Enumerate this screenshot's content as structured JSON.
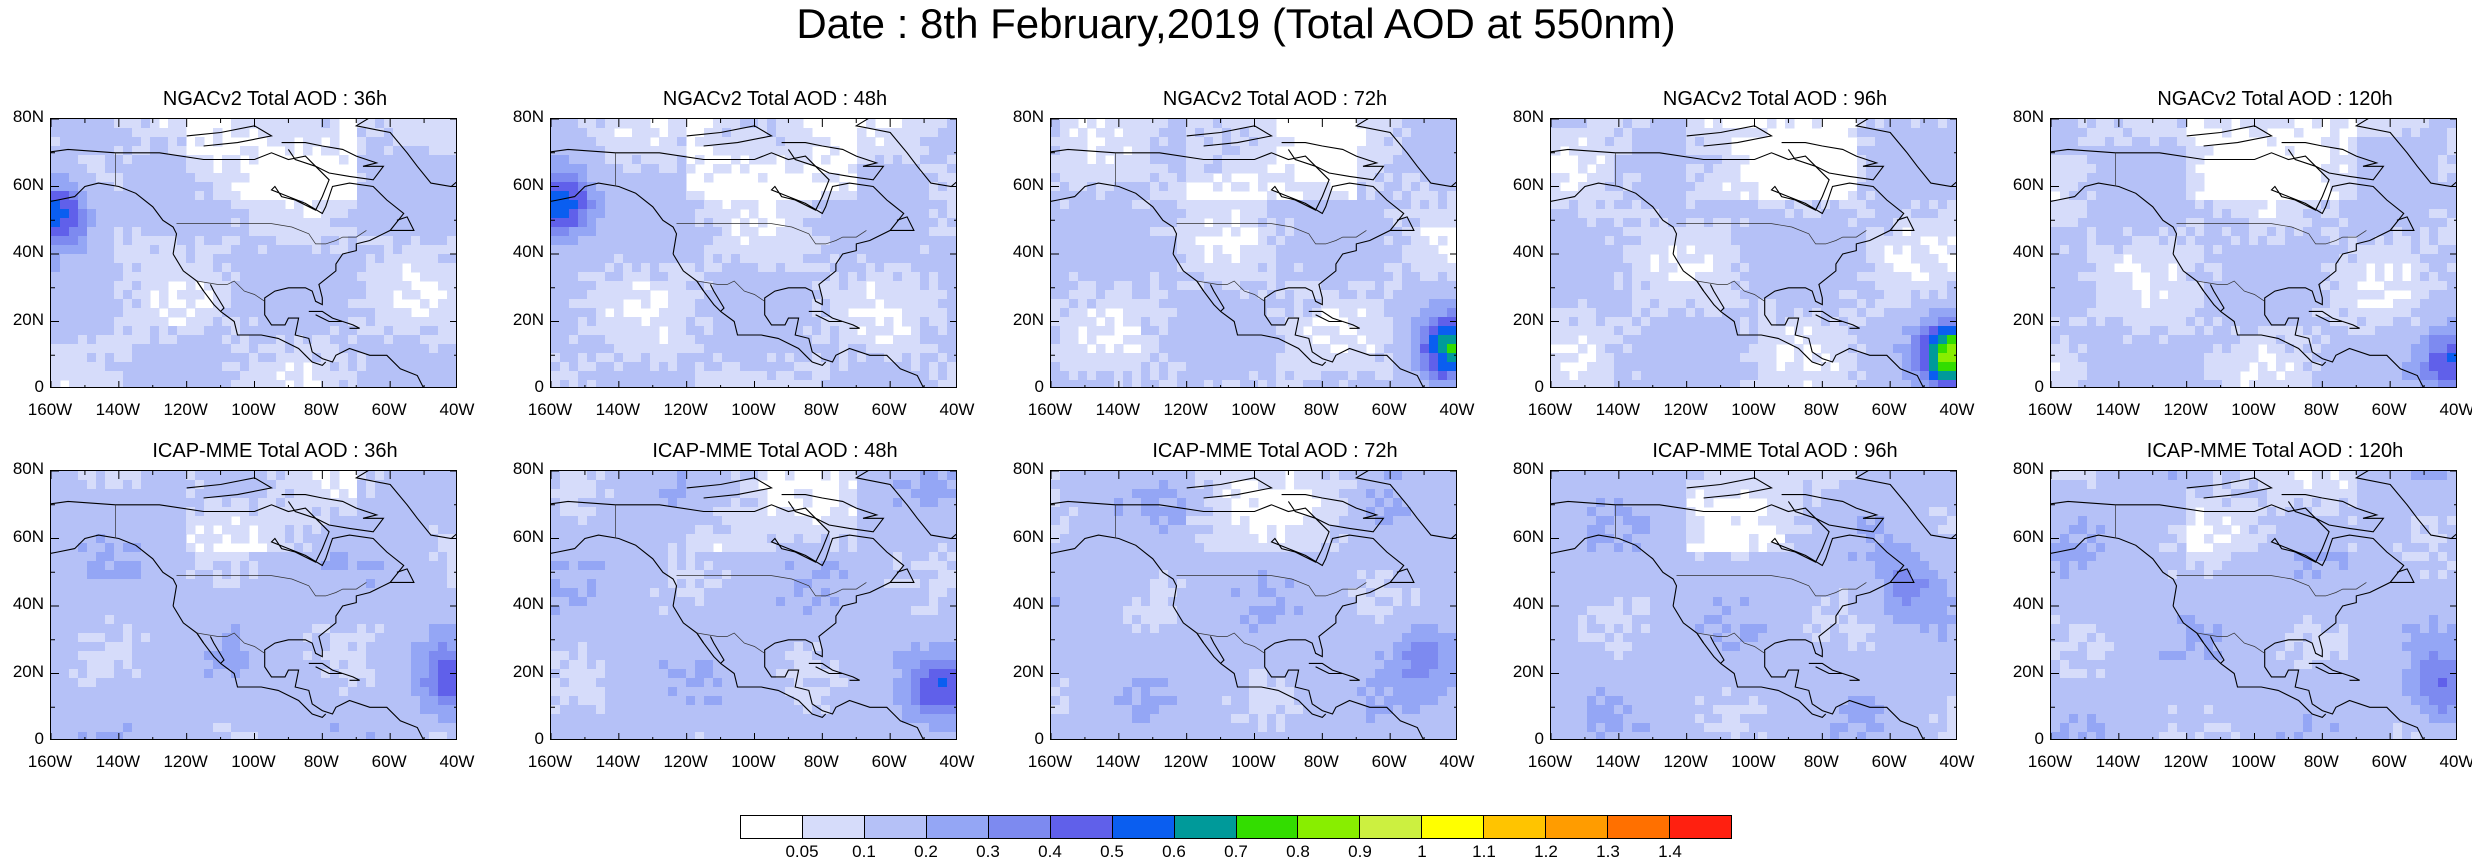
{
  "title": "Date : 8th February,2019 (Total AOD at 550nm)",
  "y_ticks": [
    "80N",
    "60N",
    "40N",
    "20N",
    "0"
  ],
  "x_ticks": [
    "160W",
    "140W",
    "120W",
    "100W",
    "80W",
    "60W",
    "40W"
  ],
  "panels": [
    {
      "title": "NGACv2 Total AOD : 36h",
      "plume_lon": -158,
      "plume_lat": 52,
      "plume_aod": 0.5
    },
    {
      "title": "NGACv2 Total AOD : 48h",
      "plume_lon": -157,
      "plume_lat": 55,
      "plume_aod": 0.5
    },
    {
      "title": "NGACv2 Total AOD : 72h",
      "plume_lon": -42,
      "plume_lat": 12,
      "plume_aod": 0.55
    },
    {
      "title": "NGACv2 Total AOD : 96h",
      "plume_lon": -42,
      "plume_lat": 10,
      "plume_aod": 0.7
    },
    {
      "title": "NGACv2 Total AOD : 120h",
      "plume_lon": -42,
      "plume_lat": 8,
      "plume_aod": 0.4
    },
    {
      "title": "ICAP-MME Total AOD : 36h",
      "plume_lon": -42,
      "plume_lat": 18,
      "plume_aod": 0.3
    },
    {
      "title": "ICAP-MME Total AOD : 48h",
      "plume_lon": -45,
      "plume_lat": 15,
      "plume_aod": 0.3
    },
    {
      "title": "ICAP-MME Total AOD : 72h",
      "plume_lon": -50,
      "plume_lat": 25,
      "plume_aod": 0.2
    },
    {
      "title": "ICAP-MME Total AOD : 96h",
      "plume_lon": -55,
      "plume_lat": 45,
      "plume_aod": 0.2
    },
    {
      "title": "ICAP-MME Total AOD : 120h",
      "plume_lon": -45,
      "plume_lat": 15,
      "plume_aod": 0.25
    }
  ],
  "colorbar": {
    "labels": [
      "0.05",
      "0.1",
      "0.2",
      "0.3",
      "0.4",
      "0.5",
      "0.6",
      "0.7",
      "0.8",
      "0.9",
      "1",
      "1.1",
      "1.2",
      "1.3",
      "1.4"
    ],
    "colors": [
      "#ffffff",
      "#d6dcfa",
      "#b5c1f7",
      "#94a6f5",
      "#7d8af0",
      "#6060ea",
      "#0a5ef0",
      "#009a9a",
      "#33dd00",
      "#88ee00",
      "#ccf040",
      "#ffff00",
      "#ffc400",
      "#ff9c00",
      "#ff7000",
      "#ff2010"
    ]
  }
}
